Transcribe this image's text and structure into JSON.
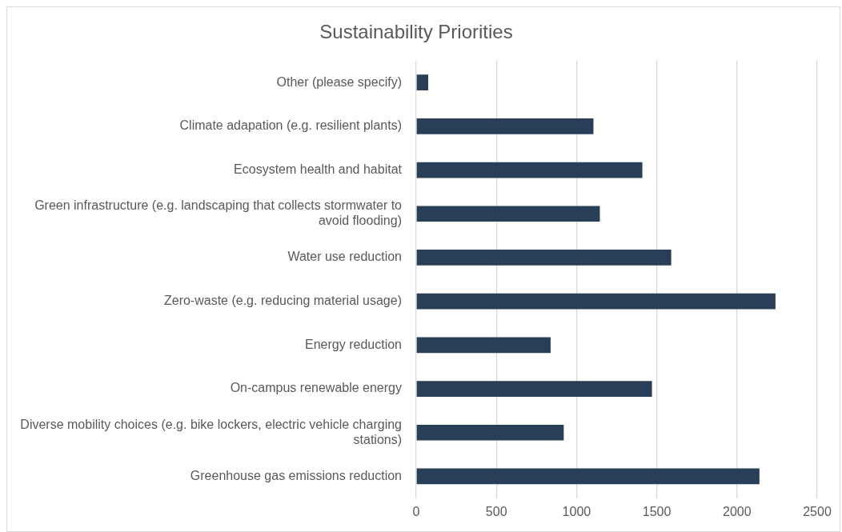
{
  "chart_data": {
    "type": "bar",
    "orientation": "horizontal",
    "title": "Sustainability Priorities",
    "categories": [
      "Other (please specify)",
      "Climate adapation (e.g. resilient plants)",
      "Ecosystem health and habitat",
      "Green infrastructure (e.g. landscaping that collects stormwater to avoid flooding)",
      "Water use reduction",
      "Zero-waste (e.g. reducing material usage)",
      "Energy reduction",
      "On-campus renewable energy",
      "Diverse mobility choices (e.g. bike lockers, electric vehicle charging stations)",
      "Greenhouse gas emissions reduction"
    ],
    "values": [
      75,
      1105,
      1410,
      1145,
      1590,
      2240,
      838,
      1470,
      920,
      2140
    ],
    "color": "#293f57",
    "xlim": [
      0,
      2500
    ],
    "xticks": [
      0,
      500,
      1000,
      1500,
      2000,
      2500
    ],
    "grid": "x",
    "legend": false
  }
}
